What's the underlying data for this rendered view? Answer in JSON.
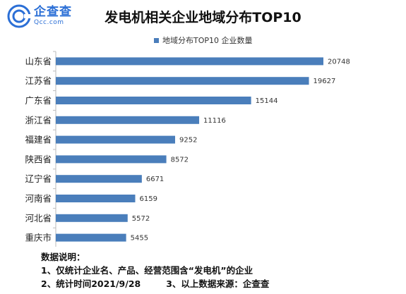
{
  "logo": {
    "cn": "企查查",
    "en": "Qcc.com"
  },
  "chart_data": {
    "type": "bar",
    "orientation": "horizontal",
    "title": "发电机相关企业地域分布TOP10",
    "categories": [
      "山东省",
      "江苏省",
      "广东省",
      "浙江省",
      "福建省",
      "陕西省",
      "辽宁省",
      "河南省",
      "河北省",
      "重庆市"
    ],
    "series": [
      {
        "name": "地域分布TOP10 企业数量",
        "values": [
          20748,
          19627,
          15144,
          11116,
          9252,
          8572,
          6671,
          6159,
          5572,
          5455
        ]
      }
    ],
    "value_labels": [
      "20748",
      "19627",
      "15144",
      "11116",
      "9252",
      "8572",
      "6671",
      "6159",
      "5572",
      "5455"
    ],
    "legend_position": "top",
    "grid": false,
    "bar_color": "#4a7ebb"
  },
  "notes": {
    "heading": "数据说明：",
    "line1": "1、仅统计企业名、产品、经营范围含“发电机”的企业",
    "line2a": "2、统计时间2021/9/28",
    "line2b": "3、以上数据来源：企查查"
  }
}
